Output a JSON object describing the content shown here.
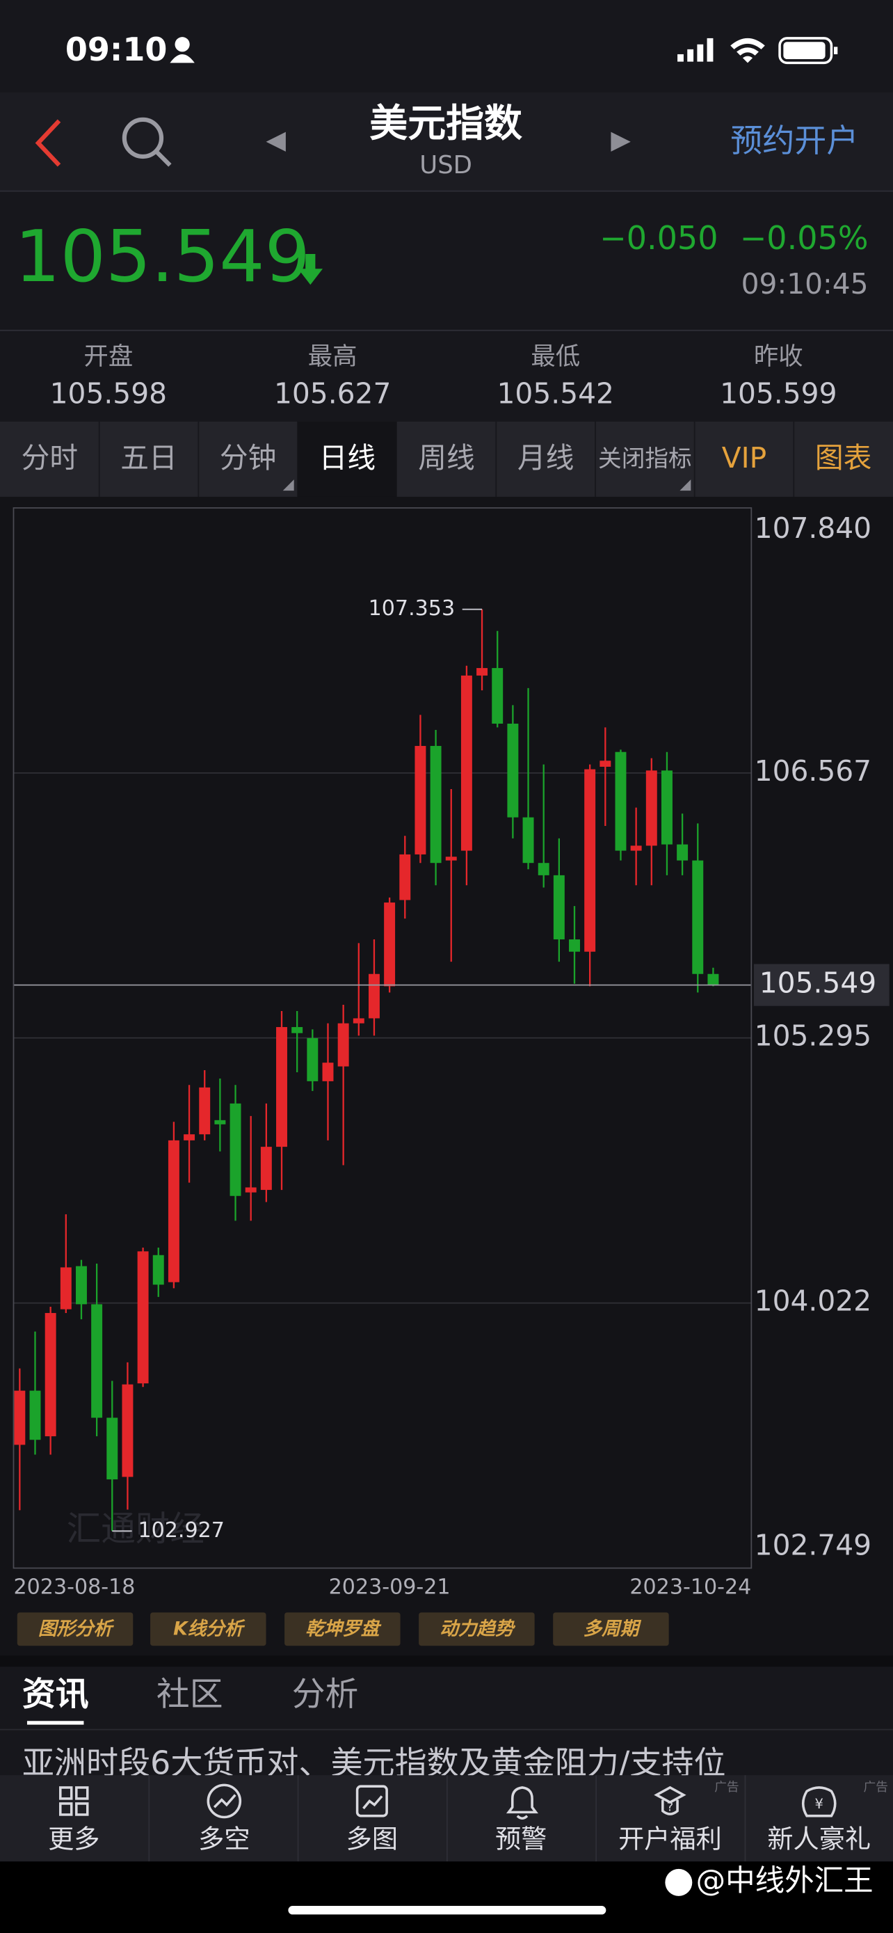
{
  "status_bar": {
    "time": "09:10"
  },
  "header": {
    "title": "美元指数",
    "subtitle": "USD",
    "action": "预约开户"
  },
  "quote": {
    "price": "105.549",
    "change": "−0.050",
    "change_percent": "−0.05%",
    "time": "09:10:45"
  },
  "stats": [
    {
      "label": "开盘",
      "value": "105.598"
    },
    {
      "label": "最高",
      "value": "105.627"
    },
    {
      "label": "最低",
      "value": "105.542"
    },
    {
      "label": "昨收",
      "value": "105.599"
    }
  ],
  "tabs": [
    "分时",
    "五日",
    "分钟",
    "日线",
    "周线",
    "月线",
    "关闭指标",
    "VIP",
    "图表"
  ],
  "chart_watermark": "汇通财经",
  "chart_data": {
    "type": "candlestick",
    "categories": [
      "2023-08-18",
      null,
      null,
      null,
      null,
      null,
      null,
      null,
      null,
      null,
      null,
      null,
      null,
      null,
      null,
      null,
      null,
      null,
      null,
      null,
      null,
      null,
      null,
      null,
      "2023-09-21",
      null,
      null,
      null,
      null,
      null,
      null,
      null,
      null,
      null,
      null,
      null,
      null,
      null,
      null,
      null,
      null,
      null,
      null,
      null,
      null,
      "2023-10-24"
    ],
    "open": [
      103.341,
      103.601,
      103.382,
      103.992,
      104.199,
      104.016,
      103.471,
      103.187,
      103.636,
      104.252,
      104.122,
      104.803,
      104.832,
      104.9,
      104.98,
      104.553,
      104.565,
      104.772,
      105.347,
      105.294,
      105.087,
      105.158,
      105.365,
      105.389,
      105.543,
      105.957,
      106.176,
      106.697,
      106.147,
      106.194,
      107.035,
      107.071,
      106.804,
      106.354,
      106.135,
      106.076,
      105.768,
      105.709,
      106.597,
      106.668,
      106.194,
      106.218,
      106.579,
      106.224,
      106.147,
      105.602
    ],
    "high": [
      103.708,
      103.885,
      104.004,
      104.448,
      104.229,
      104.211,
      103.648,
      103.737,
      104.288,
      104.288,
      104.892,
      105.069,
      105.14,
      105.1,
      105.069,
      104.92,
      104.98,
      105.424,
      105.424,
      105.336,
      105.365,
      105.454,
      105.75,
      105.768,
      105.969,
      106.265,
      106.846,
      106.774,
      106.49,
      107.082,
      107.353,
      107.249,
      106.893,
      106.975,
      106.608,
      106.253,
      105.928,
      106.608,
      106.786,
      106.679,
      106.401,
      106.638,
      106.668,
      106.372,
      106.325,
      105.632
    ],
    "low": [
      103.027,
      103.294,
      103.294,
      103.974,
      103.944,
      103.382,
      102.927,
      103.03,
      103.619,
      104.051,
      104.093,
      104.6,
      104.803,
      104.75,
      104.417,
      104.417,
      104.507,
      104.565,
      105.13,
      105.04,
      104.803,
      104.684,
      105.306,
      105.306,
      105.513,
      105.868,
      106.135,
      106.028,
      105.661,
      106.028,
      106.964,
      106.786,
      106.253,
      106.105,
      106.017,
      105.661,
      105.555,
      105.543,
      106.313,
      106.147,
      106.028,
      106.028,
      106.076,
      106.076,
      105.513,
      105.543
    ],
    "close": [
      103.601,
      103.365,
      103.974,
      104.193,
      104.016,
      103.471,
      103.175,
      103.631,
      104.27,
      104.11,
      104.803,
      104.832,
      105.057,
      104.88,
      104.536,
      104.577,
      104.772,
      105.347,
      105.318,
      105.087,
      105.176,
      105.365,
      105.389,
      105.602,
      105.945,
      106.176,
      106.697,
      106.135,
      106.165,
      107.035,
      107.071,
      106.804,
      106.354,
      106.135,
      106.076,
      105.768,
      105.709,
      106.585,
      106.626,
      106.194,
      106.218,
      106.579,
      106.224,
      106.147,
      105.602,
      105.549
    ],
    "up_color": "#e5272b",
    "down_color": "#1ba32b",
    "ylim": [
      102.749,
      107.84
    ],
    "yticks": [
      102.749,
      104.022,
      105.295,
      106.567,
      {
        "value": 107.84,
        "label": "107.840"
      }
    ],
    "grid": true,
    "last_price": 105.549
  },
  "tools": [
    "图形分析",
    "K线分析",
    "乾坤罗盘",
    "动力趋势",
    "多周期"
  ],
  "news_tabs": [
    "资讯",
    "社区",
    "分析"
  ],
  "news_headline": "亚洲时段6大货币对、美元指数及黄金阻力/支持位",
  "bottom_nav": [
    {
      "label": "更多"
    },
    {
      "label": "多空"
    },
    {
      "label": "多图"
    },
    {
      "label": "预警"
    },
    {
      "label": "开户福利",
      "badge": "广告"
    },
    {
      "label": "新人豪礼",
      "badge": "广告"
    }
  ],
  "watermark": "@中线外汇王"
}
